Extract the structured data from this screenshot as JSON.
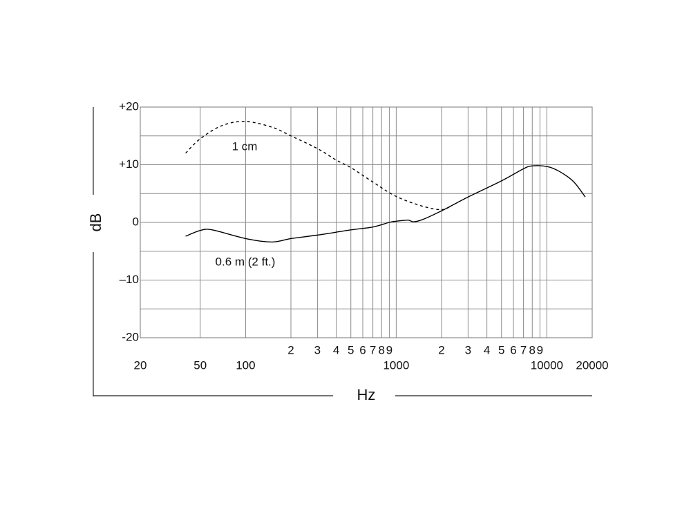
{
  "chart_data": {
    "type": "line",
    "x_label": "Hz",
    "y_label": "dB",
    "xscale": "log",
    "grid": true,
    "xlim": [
      20,
      20000
    ],
    "ylim": [
      -20,
      20
    ],
    "xticks": [
      20,
      50,
      100,
      {
        "value": 200,
        "label": "2"
      },
      {
        "value": 300,
        "label": "3"
      },
      {
        "value": 400,
        "label": "4"
      },
      {
        "value": 500,
        "label": "5"
      },
      {
        "value": 600,
        "label": "6"
      },
      {
        "value": 700,
        "label": "7"
      },
      {
        "value": 800,
        "label": "8"
      },
      {
        "value": 900,
        "label": "9"
      },
      1000,
      {
        "value": 2000,
        "label": "2"
      },
      {
        "value": 3000,
        "label": "3"
      },
      {
        "value": 4000,
        "label": "4"
      },
      {
        "value": 5000,
        "label": "5"
      },
      {
        "value": 6000,
        "label": "6"
      },
      {
        "value": 7000,
        "label": "7"
      },
      {
        "value": 8000,
        "label": "8"
      },
      {
        "value": 9000,
        "label": "9"
      },
      10000,
      20000
    ],
    "yticks": [
      {
        "value": 20,
        "label": "+20"
      },
      {
        "value": 10,
        "label": "+10"
      },
      0,
      {
        "value": -10,
        "label": "–10"
      },
      {
        "value": -20,
        "label": "-20"
      }
    ],
    "yminorticks": [
      -15,
      -5,
      5,
      15
    ],
    "series": [
      {
        "name": "1 cm",
        "color": "#000000",
        "dash": true,
        "x": [
          40,
          50,
          70,
          100,
          150,
          200,
          300,
          400,
          500,
          700,
          1000,
          1500,
          2000,
          2300
        ],
        "values": [
          12,
          14.5,
          16.8,
          17.5,
          16.5,
          15,
          12.8,
          10.8,
          9.5,
          7,
          4.5,
          2.8,
          2.2,
          2.8
        ]
      },
      {
        "name": "0.6 m (2 ft.)",
        "color": "#000000",
        "dash": false,
        "x": [
          40,
          50,
          60,
          100,
          150,
          200,
          300,
          500,
          700,
          900,
          1000,
          1200,
          1300,
          1500,
          2000,
          3000,
          5000,
          7000,
          8000,
          10000,
          12000,
          15000,
          18000
        ],
        "values": [
          -2.4,
          -1.4,
          -1.3,
          -2.8,
          -3.4,
          -2.8,
          -2.2,
          -1.3,
          -0.8,
          0,
          0.2,
          0.4,
          0.1,
          0.5,
          2,
          4.4,
          7.2,
          9.3,
          9.8,
          9.7,
          8.9,
          7.1,
          4.4
        ]
      }
    ]
  }
}
